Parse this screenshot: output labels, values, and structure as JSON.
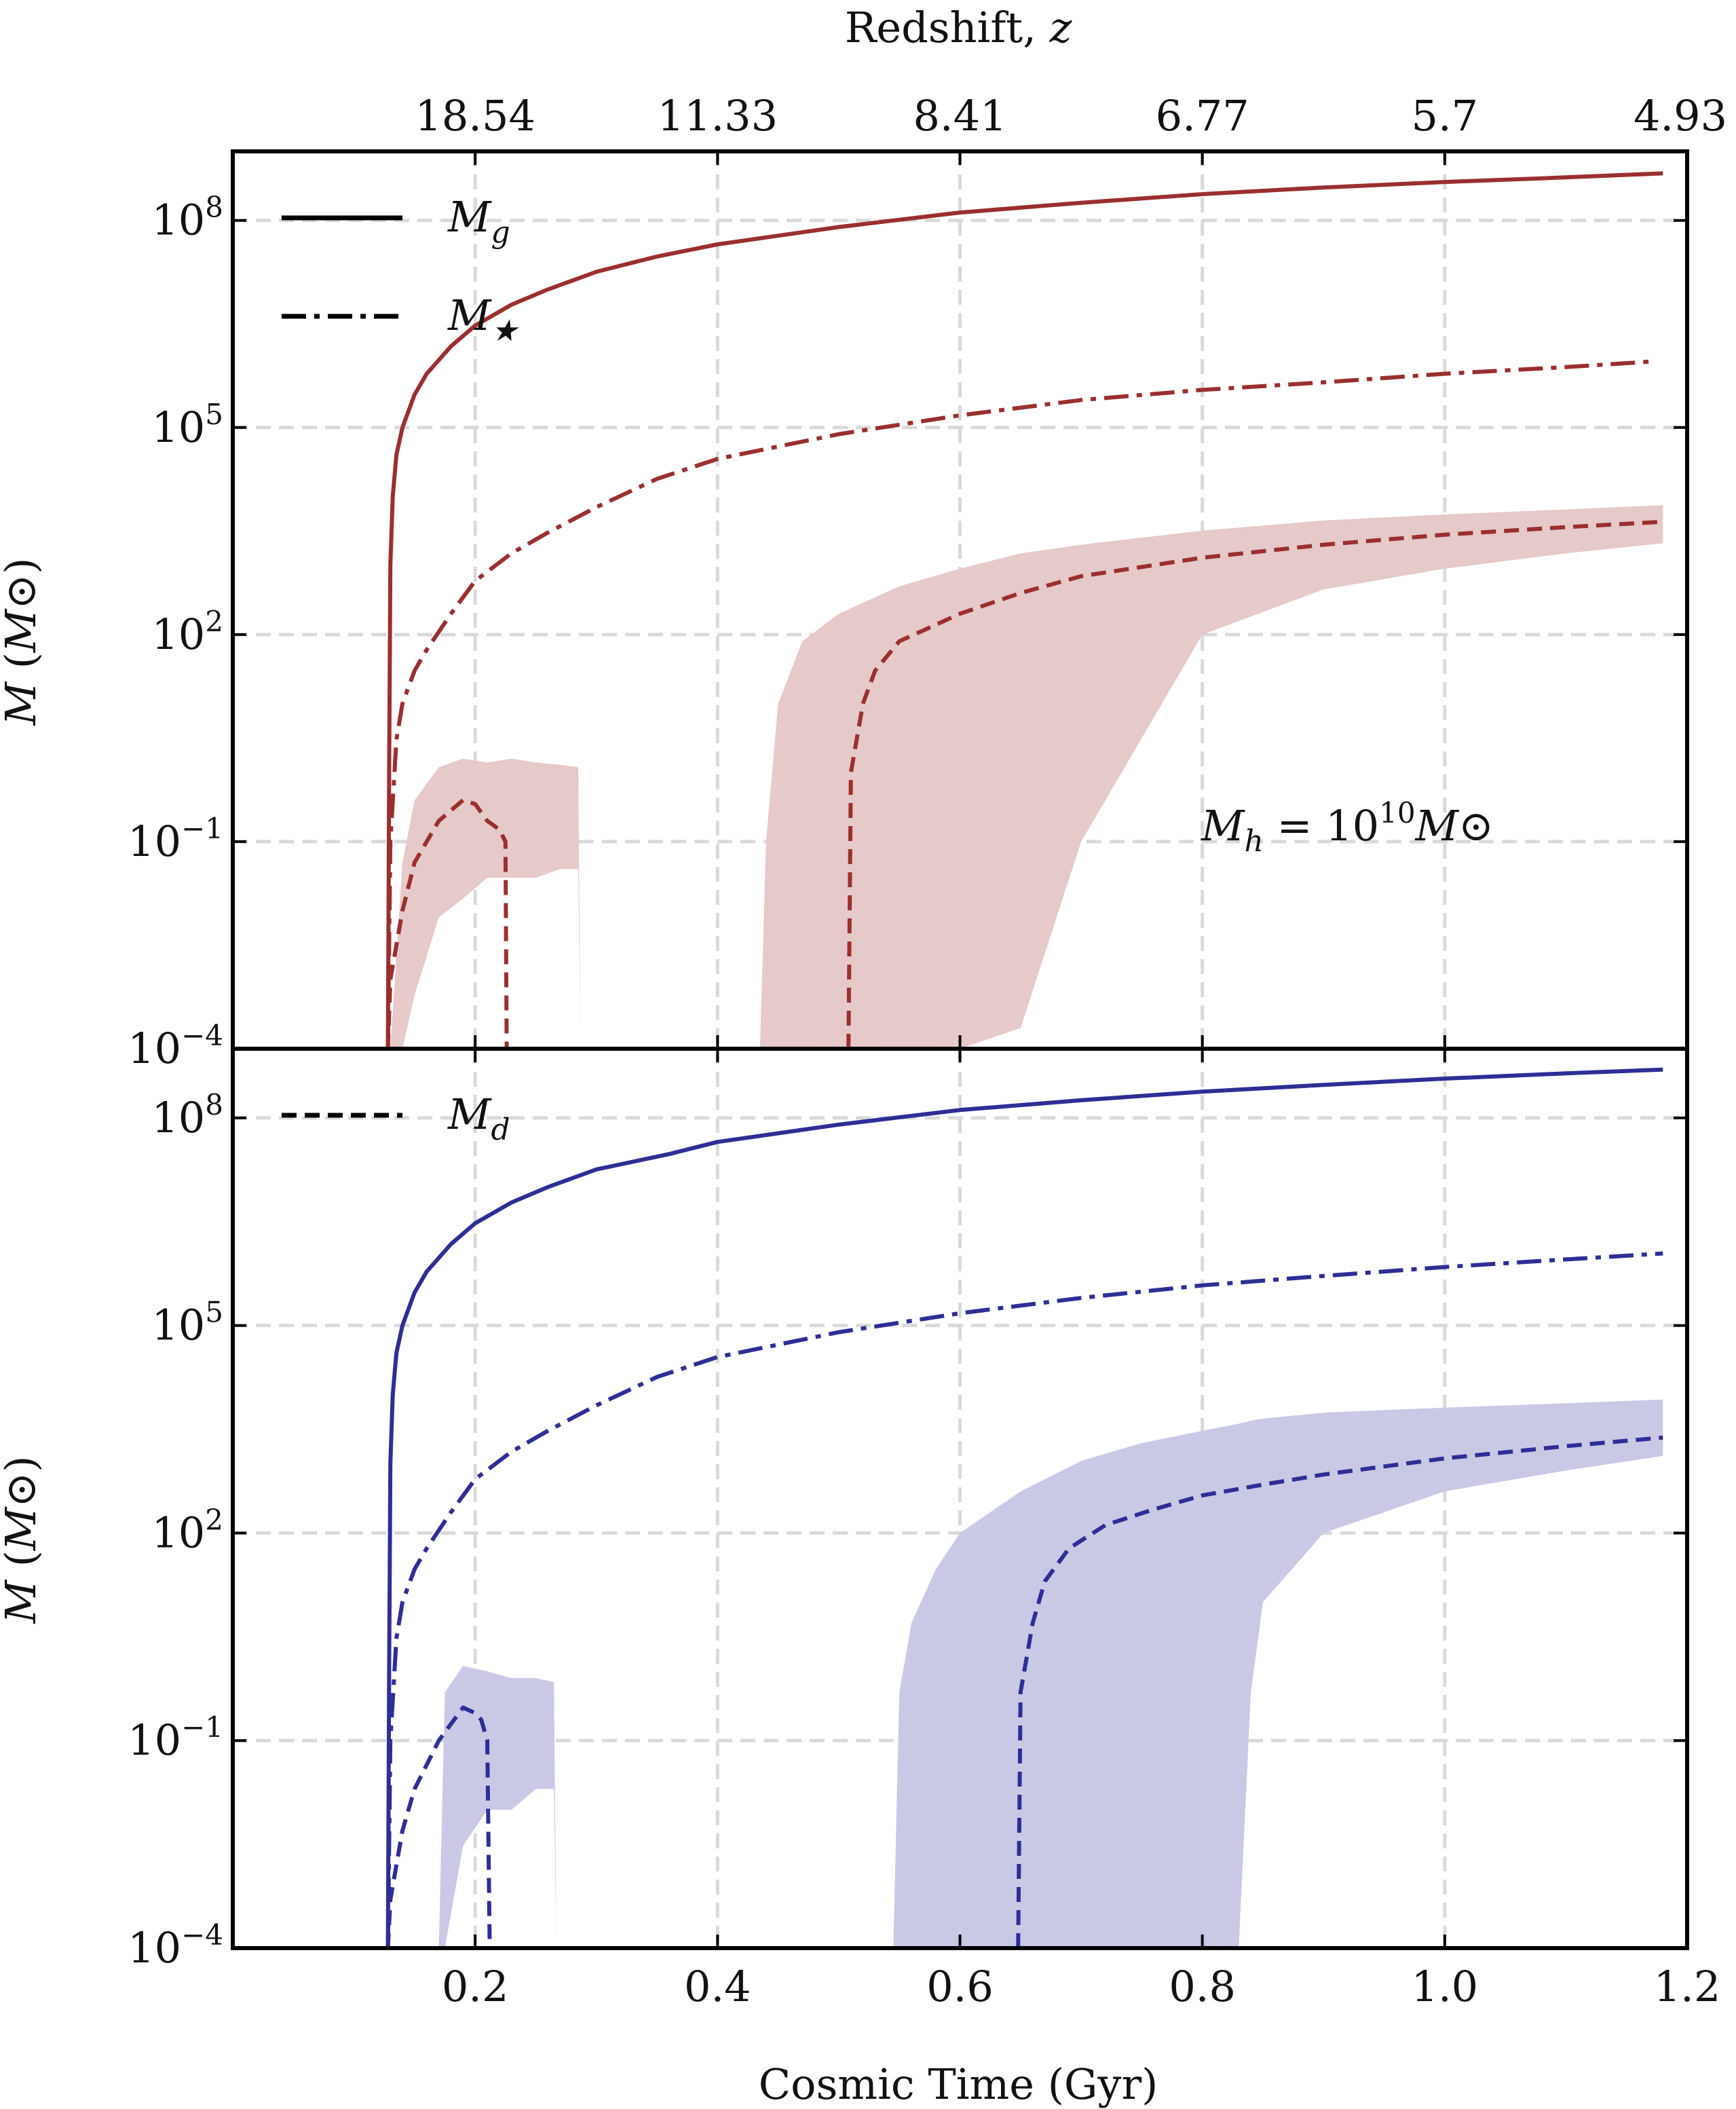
{
  "chart_data": [
    {
      "type": "line",
      "panel": "top",
      "title": "",
      "xlabel": "",
      "ylabel": "M (M⊙)",
      "xlim": [
        0.0,
        1.2
      ],
      "ylim": [
        0.0001,
        1000000000
      ],
      "yscale": "log",
      "grid": true,
      "yticks": [
        {
          "value": 0.0001,
          "base": "10",
          "exp": "−4"
        },
        {
          "value": 0.1,
          "base": "10",
          "exp": "−1"
        },
        {
          "value": 100,
          "base": "10",
          "exp": "2"
        },
        {
          "value": 100000,
          "base": "10",
          "exp": "5"
        },
        {
          "value": 100000000,
          "base": "10",
          "exp": "8"
        }
      ],
      "top_axis": {
        "label": "Redshift, z",
        "ticks": [
          {
            "x": 0.2,
            "label": "18.54"
          },
          {
            "x": 0.4,
            "label": "11.33"
          },
          {
            "x": 0.6,
            "label": "8.41"
          },
          {
            "x": 0.8,
            "label": "6.77"
          },
          {
            "x": 1.0,
            "label": "5.7"
          },
          {
            "x": 1.2,
            "label": "4.93"
          }
        ]
      },
      "legend": {
        "position": "top-left",
        "entries": [
          {
            "label": "Mg",
            "style": "solid"
          },
          {
            "label": "M★",
            "style": "dashdot"
          }
        ]
      },
      "annotation": "Mh = 10¹⁰ M⊙",
      "color": "#9b2f2f",
      "band_color": "#e6c9c9",
      "series": [
        {
          "name": "Mg",
          "style": "solid",
          "x": [
            0.128,
            0.129,
            0.13,
            0.132,
            0.135,
            0.14,
            0.15,
            0.16,
            0.18,
            0.2,
            0.23,
            0.26,
            0.3,
            0.35,
            0.4,
            0.5,
            0.6,
            0.7,
            0.8,
            0.9,
            1.0,
            1.1,
            1.18
          ],
          "y": [
            0.0001,
            1,
            1000,
            10000,
            40000,
            100000,
            300000,
            600000,
            1500000,
            3000000,
            6000000,
            10000000,
            18000000,
            30000000,
            45000000,
            80000000,
            130000000,
            180000000,
            240000000,
            300000000,
            360000000,
            420000000,
            480000000
          ]
        },
        {
          "name": "M★",
          "style": "dashdot",
          "x": [
            0.128,
            0.13,
            0.135,
            0.14,
            0.15,
            0.16,
            0.18,
            0.2,
            0.23,
            0.26,
            0.3,
            0.35,
            0.4,
            0.5,
            0.6,
            0.7,
            0.8,
            0.9,
            1.0,
            1.1,
            1.17
          ],
          "y": [
            0.0001,
            0.1,
            3,
            10,
            30,
            60,
            200,
            600,
            1500,
            3000,
            7000,
            18000,
            35000,
            80000,
            150000,
            250000,
            350000,
            450000,
            600000,
            750000,
            900000
          ]
        },
        {
          "name": "Md",
          "style": "dashed",
          "segments": [
            {
              "x": [
                0.128,
                0.13,
                0.14,
                0.15,
                0.17,
                0.19,
                0.2,
                0.21,
                0.22,
                0.225,
                0.226
              ],
              "y": [
                0.0001,
                0.001,
                0.01,
                0.05,
                0.2,
                0.4,
                0.35,
                0.2,
                0.15,
                0.1,
                0.0001
              ]
            },
            {
              "x": [
                0.508,
                0.51,
                0.52,
                0.53,
                0.55,
                0.6,
                0.65,
                0.7,
                0.8,
                0.9,
                1.0,
                1.1,
                1.18
              ],
              "y": [
                0.0001,
                1,
                10,
                30,
                80,
                200,
                400,
                700,
                1300,
                2000,
                2800,
                3600,
                4300
              ]
            }
          ]
        },
        {
          "name": "Md band",
          "style": "band",
          "segments": [
            {
              "x": [
                0.13,
                0.14,
                0.15,
                0.17,
                0.19,
                0.21,
                0.23,
                0.25,
                0.27,
                0.285,
                0.287
              ],
              "lower": [
                0.0001,
                0.0001,
                0.0006,
                0.008,
                0.015,
                0.03,
                0.03,
                0.03,
                0.04,
                0.04,
                0.0001
              ],
              "upper": [
                0.0001,
                0.05,
                0.4,
                1.2,
                1.6,
                1.4,
                1.6,
                1.4,
                1.3,
                1.2,
                0.0001
              ]
            },
            {
              "x": [
                0.435,
                0.44,
                0.45,
                0.47,
                0.5,
                0.55,
                0.6,
                0.65,
                0.7,
                0.8,
                0.9,
                1.0,
                1.1,
                1.18
              ],
              "lower": [
                0.0001,
                0.0001,
                0.0001,
                0.0001,
                0.0001,
                0.0001,
                0.0001,
                0.0002,
                0.1,
                100,
                450,
                900,
                1500,
                2100
              ],
              "upper": [
                0.0001,
                0.1,
                10,
                80,
                200,
                500,
                900,
                1500,
                2000,
                3200,
                4500,
                5500,
                6500,
                7500
              ]
            }
          ]
        }
      ]
    },
    {
      "type": "line",
      "panel": "bottom",
      "title": "",
      "xlabel": "Cosmic Time (Gyr)",
      "ylabel": "M (M⊙)",
      "xlim": [
        0.0,
        1.2
      ],
      "ylim": [
        0.0001,
        1000000000
      ],
      "yscale": "log",
      "grid": true,
      "xticks": [
        0.2,
        0.4,
        0.6,
        0.8,
        1.0,
        1.2
      ],
      "xtick_labels": [
        "0.2",
        "0.4",
        "0.6",
        "0.8",
        "1.0",
        "1.2"
      ],
      "yticks": [
        {
          "value": 0.0001,
          "base": "10",
          "exp": "−4"
        },
        {
          "value": 0.1,
          "base": "10",
          "exp": "−1"
        },
        {
          "value": 100,
          "base": "10",
          "exp": "2"
        },
        {
          "value": 100000,
          "base": "10",
          "exp": "5"
        },
        {
          "value": 100000000,
          "base": "10",
          "exp": "8"
        }
      ],
      "legend": {
        "position": "top-left",
        "entries": [
          {
            "label": "Md",
            "style": "dashed"
          }
        ]
      },
      "color": "#2e2e96",
      "band_color": "#c9c9e6",
      "series": [
        {
          "name": "Mg",
          "style": "solid",
          "x": [
            0.128,
            0.129,
            0.13,
            0.132,
            0.135,
            0.14,
            0.15,
            0.16,
            0.18,
            0.2,
            0.23,
            0.26,
            0.3,
            0.36,
            0.4,
            0.5,
            0.6,
            0.7,
            0.8,
            0.9,
            1.0,
            1.1,
            1.18
          ],
          "y": [
            0.0001,
            1,
            1000,
            10000,
            40000,
            100000,
            300000,
            600000,
            1500000,
            3000000,
            6000000,
            10000000,
            18000000,
            30000000,
            45000000,
            80000000,
            130000000,
            180000000,
            240000000,
            300000000,
            370000000,
            440000000,
            500000000
          ]
        },
        {
          "name": "M★",
          "style": "dashdot",
          "x": [
            0.128,
            0.13,
            0.135,
            0.14,
            0.15,
            0.16,
            0.18,
            0.2,
            0.23,
            0.26,
            0.3,
            0.35,
            0.4,
            0.5,
            0.6,
            0.7,
            0.8,
            0.9,
            1.0,
            1.1,
            1.18
          ],
          "y": [
            0.0001,
            0.1,
            3,
            10,
            30,
            60,
            200,
            600,
            1500,
            3000,
            7000,
            18000,
            35000,
            80000,
            150000,
            250000,
            380000,
            520000,
            700000,
            900000,
            1100000
          ]
        },
        {
          "name": "Md",
          "style": "dashed",
          "segments": [
            {
              "x": [
                0.128,
                0.13,
                0.14,
                0.15,
                0.17,
                0.19,
                0.2,
                0.205,
                0.21,
                0.212
              ],
              "y": [
                0.0001,
                0.0005,
                0.005,
                0.02,
                0.1,
                0.3,
                0.25,
                0.2,
                0.1,
                0.0001
              ]
            },
            {
              "x": [
                0.648,
                0.65,
                0.66,
                0.67,
                0.69,
                0.72,
                0.76,
                0.8,
                0.85,
                0.9,
                1.0,
                1.1,
                1.18
              ],
              "y": [
                0.0001,
                0.5,
                5,
                20,
                60,
                130,
                220,
                350,
                500,
                700,
                1200,
                1800,
                2400
              ]
            }
          ]
        },
        {
          "name": "Md band",
          "style": "band",
          "segments": [
            {
              "x": [
                0.17,
                0.175,
                0.19,
                0.21,
                0.23,
                0.25,
                0.265,
                0.267
              ],
              "lower": [
                0.0001,
                0.0001,
                0.003,
                0.01,
                0.01,
                0.02,
                0.02,
                0.0001
              ],
              "upper": [
                0.0001,
                0.5,
                1.2,
                1.0,
                0.8,
                0.8,
                0.7,
                0.0001
              ]
            },
            {
              "x": [
                0.545,
                0.55,
                0.56,
                0.58,
                0.6,
                0.65,
                0.7,
                0.75,
                0.8,
                0.83,
                0.84,
                0.85,
                0.9,
                1.0,
                1.1,
                1.18
              ],
              "lower": [
                0.0001,
                0.0001,
                0.0001,
                0.0001,
                0.0001,
                0.0001,
                0.0001,
                0.0001,
                0.0001,
                0.0001,
                0.5,
                10,
                100,
                400,
                800,
                1300
              ],
              "upper": [
                0.0001,
                0.5,
                5,
                30,
                100,
                400,
                1100,
                2000,
                3000,
                3800,
                4200,
                4500,
                5500,
                6500,
                7500,
                8500
              ]
            }
          ]
        }
      ]
    }
  ]
}
